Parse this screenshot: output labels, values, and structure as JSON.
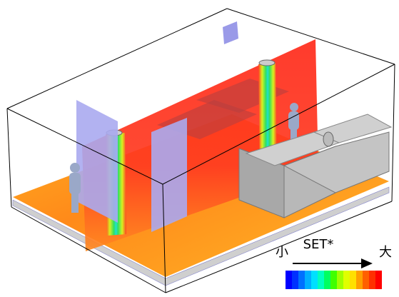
{
  "legend": {
    "low_label": "小",
    "quantity": "SET*",
    "high_label": "大"
  }
}
